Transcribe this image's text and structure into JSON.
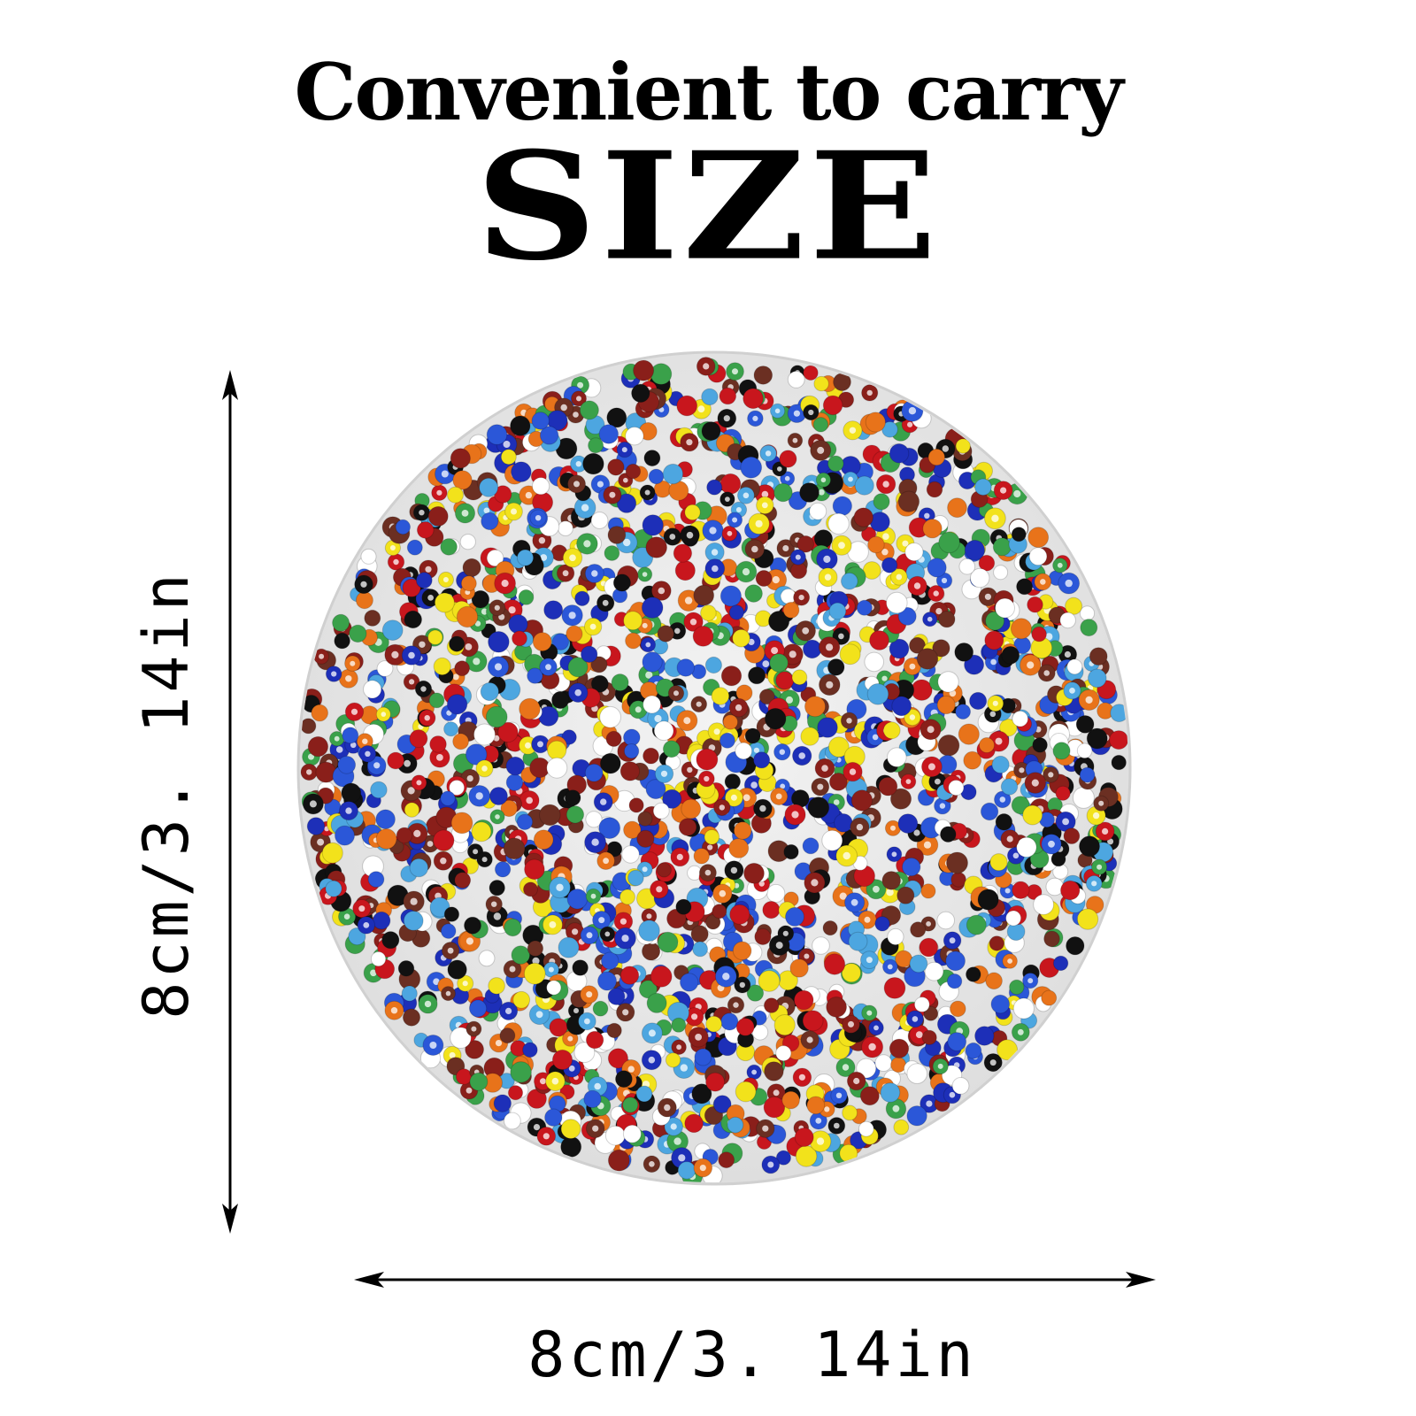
{
  "headline": {
    "line1": "Convenient to carry",
    "line2": "SIZE"
  },
  "dimensions": {
    "width_label": "8cm/3. 14in",
    "height_label": "8cm/3. 14in"
  },
  "product": {
    "name_icon": "seed-bead-disc",
    "disc_color": "#e9e9e9",
    "bead_colors": [
      "#c8161d",
      "#1d2fb8",
      "#f2e21b",
      "#111111",
      "#ffffff",
      "#6b2f22",
      "#4da6e0",
      "#e8731a",
      "#3aa14a",
      "#2b57d8",
      "#8a1f1a"
    ]
  }
}
